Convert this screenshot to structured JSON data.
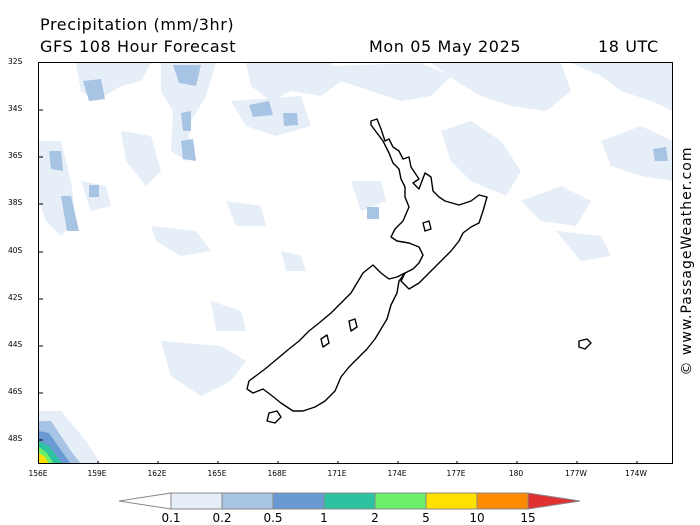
{
  "header": {
    "title": "Precipitation (mm/3hr)",
    "subtitle": "GFS 108 Hour Forecast",
    "date": "Mon 05 May 2025",
    "time": "18 UTC"
  },
  "axes": {
    "lat_labels": [
      "32S",
      "34S",
      "36S",
      "38S",
      "40S",
      "42S",
      "44S",
      "46S",
      "48S"
    ],
    "lon_labels": [
      "156E",
      "159E",
      "162E",
      "165E",
      "168E",
      "171E",
      "174E",
      "177E",
      "180",
      "177W",
      "174W"
    ]
  },
  "credit": "© www.PassageWeather.com",
  "colorbar": {
    "levels": [
      "0.1",
      "0.2",
      "0.5",
      "1",
      "2",
      "5",
      "10",
      "15"
    ],
    "colors": [
      "#ffffff",
      "#e6eef8",
      "#a8c4e4",
      "#6a9ad4",
      "#2ec3a0",
      "#6cf06c",
      "#ffe000",
      "#ff8c00",
      "#e03030"
    ]
  },
  "map_features": [
    "new-zealand-north-island",
    "new-zealand-south-island",
    "chatham-islands",
    "precipitation-shading"
  ]
}
